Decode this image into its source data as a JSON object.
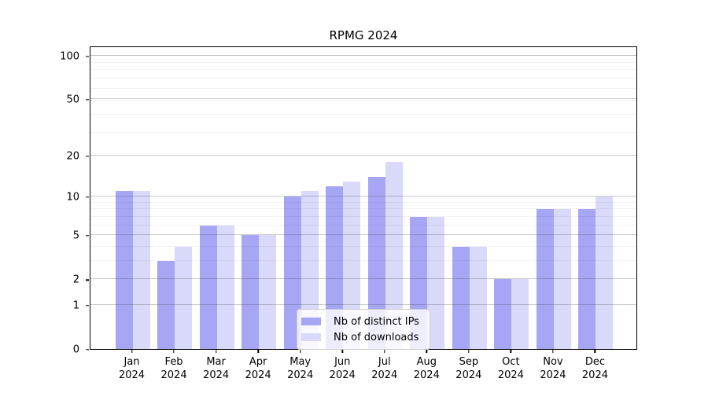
{
  "chart_data": {
    "type": "bar",
    "title": "RPMG 2024",
    "categories": [
      "Jan 2024",
      "Feb 2024",
      "Mar 2024",
      "Apr 2024",
      "May 2024",
      "Jun 2024",
      "Jul 2024",
      "Aug 2024",
      "Sep 2024",
      "Oct 2024",
      "Nov 2024",
      "Dec 2024"
    ],
    "series": [
      {
        "name": "Nb of distinct IPs",
        "color": "#a6a6f5",
        "values": [
          11,
          3,
          6,
          5,
          10,
          12,
          14,
          7,
          4,
          2,
          8,
          8
        ]
      },
      {
        "name": "Nb of downloads",
        "color": "#d9d9f9",
        "values": [
          11,
          4,
          6,
          5,
          11,
          13,
          18,
          7,
          4,
          2,
          8,
          10
        ]
      }
    ],
    "yscale": "log10(1+y)",
    "yticks": [
      0,
      1,
      2,
      5,
      10,
      20,
      50,
      100
    ],
    "ylim": [
      0,
      117
    ],
    "grid": true,
    "legend_position": "inside-bottom-center"
  }
}
